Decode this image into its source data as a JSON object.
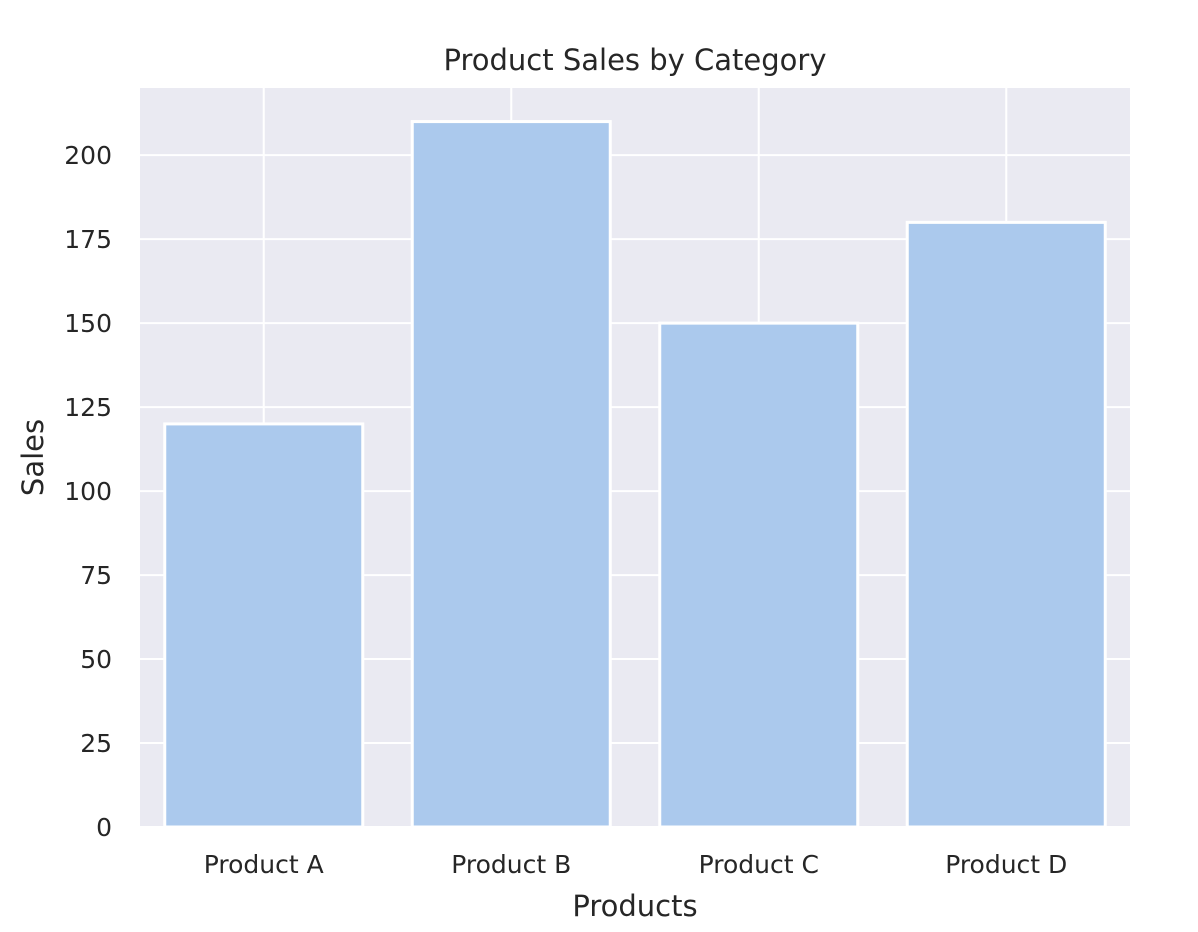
{
  "chart_data": {
    "type": "bar",
    "title": "Product Sales by Category",
    "xlabel": "Products",
    "ylabel": "Sales",
    "categories": [
      "Product A",
      "Product B",
      "Product C",
      "Product D"
    ],
    "values": [
      120,
      210,
      150,
      180
    ],
    "ylim": [
      0,
      220
    ],
    "yticks": [
      0,
      25,
      50,
      75,
      100,
      125,
      150,
      175,
      200
    ],
    "grid": true,
    "bar_color": "#abc9ed",
    "background_color": "#eaeaf2"
  }
}
